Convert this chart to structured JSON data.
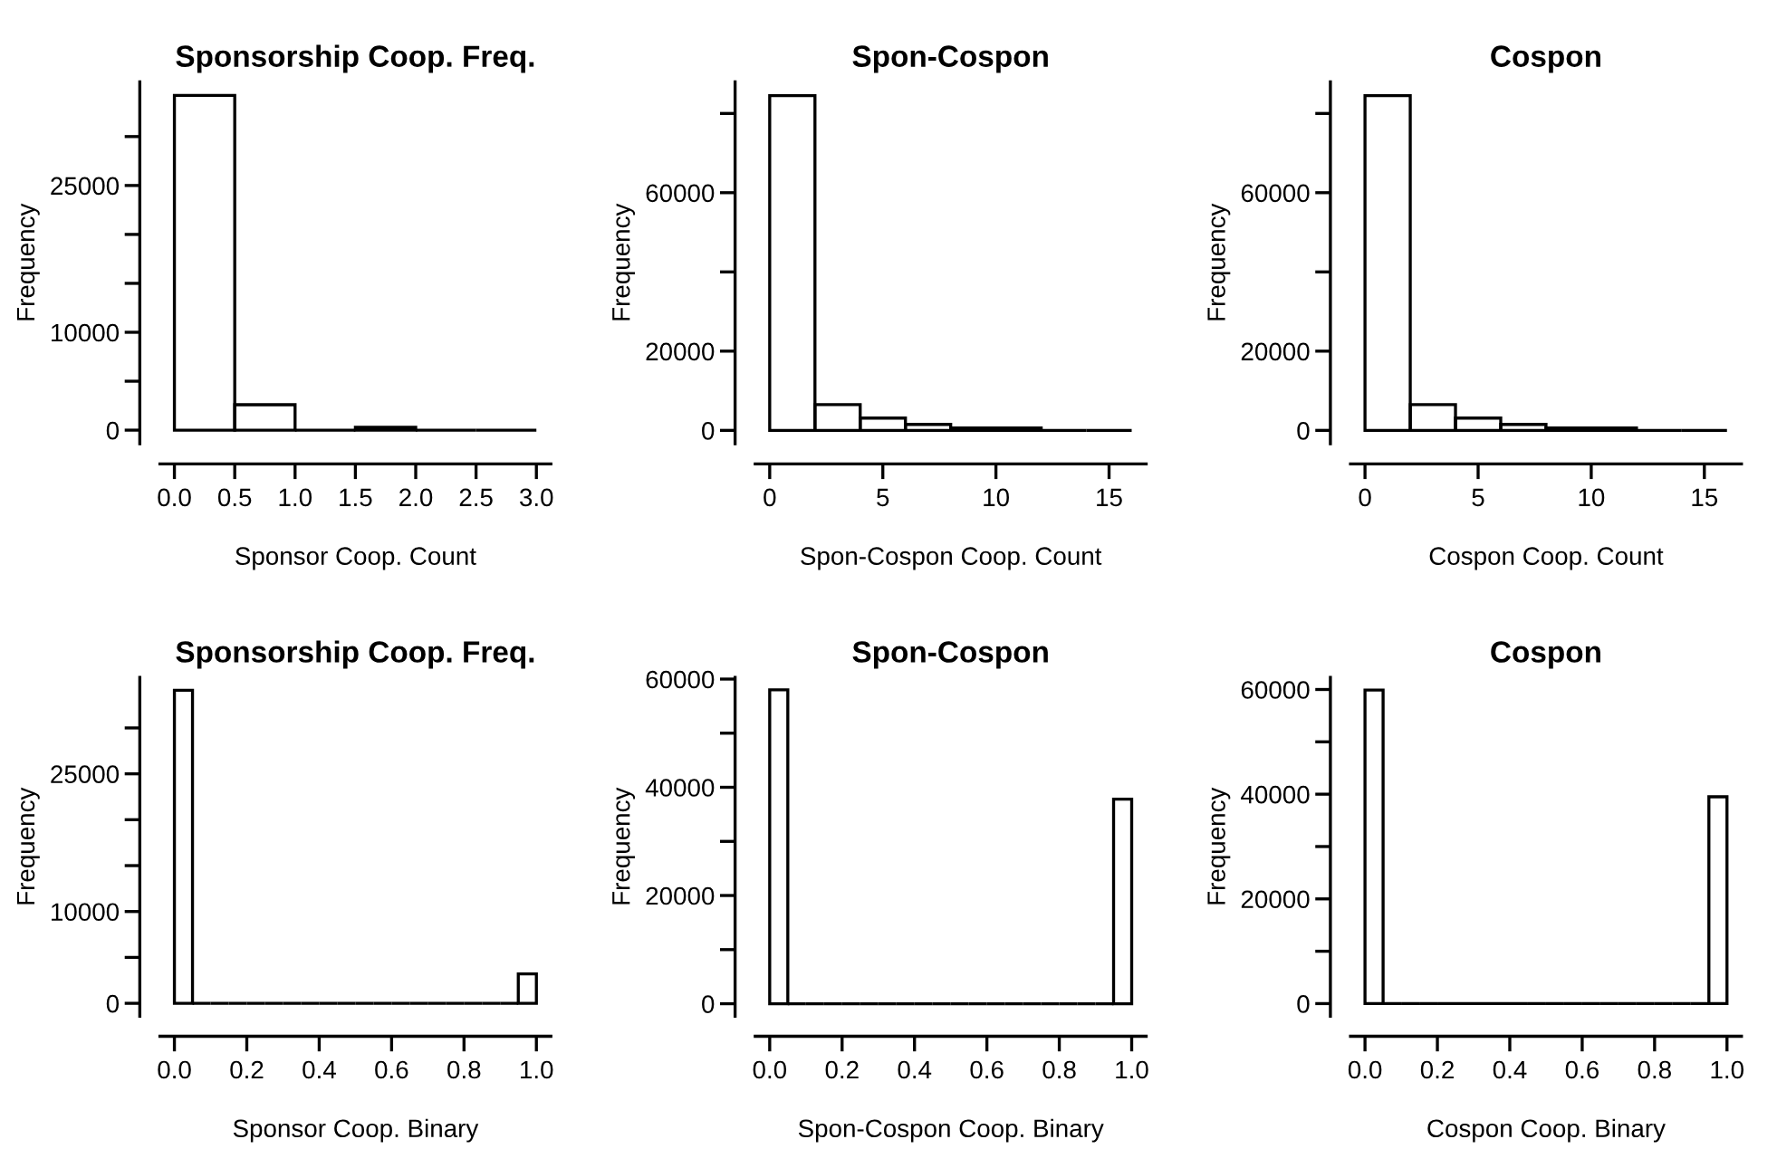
{
  "chart_data": [
    {
      "type": "histogram",
      "title": "Sponsorship Coop. Freq.",
      "xlabel": "Sponsor Coop. Count",
      "ylabel": "Frequency",
      "bins": [
        0,
        0.5,
        1.0,
        1.5,
        2.0,
        2.5,
        3.0
      ],
      "values": [
        34200,
        2600,
        0,
        300,
        0,
        0
      ],
      "xlim": [
        -0.12,
        3.12
      ],
      "xticks": [
        {
          "value": 0,
          "label": "0.0"
        },
        0.5,
        {
          "value": 1,
          "label": "1.0"
        },
        1.5,
        {
          "value": 2,
          "label": "2.0"
        },
        2.5,
        {
          "value": 3,
          "label": "3.0"
        }
      ],
      "ylim": [
        -1400,
        35600
      ],
      "yticks": [
        0,
        {
          "value": 5000,
          "label": null
        },
        10000,
        {
          "value": 15000,
          "label": null
        },
        {
          "value": 20000,
          "label": null
        },
        25000,
        {
          "value": 30000,
          "label": null
        }
      ]
    },
    {
      "type": "histogram",
      "title": "Spon-Cospon",
      "xlabel": "Spon-Cospon Coop. Count",
      "ylabel": "Frequency",
      "bins": [
        0,
        2,
        4,
        6,
        8,
        10,
        12,
        14,
        16
      ],
      "values": [
        84500,
        6500,
        3100,
        1500,
        600,
        600,
        0,
        0
      ],
      "xlim": [
        -0.64,
        16.64
      ],
      "xticks": [
        0,
        5,
        10,
        15
      ],
      "ylim": [
        -3400,
        88000
      ],
      "yticks": [
        0,
        20000,
        {
          "value": 40000,
          "label": null
        },
        60000,
        {
          "value": 80000,
          "label": null
        }
      ]
    },
    {
      "type": "histogram",
      "title": "Cospon",
      "xlabel": "Cospon Coop. Count",
      "ylabel": "Frequency",
      "bins": [
        0,
        2,
        4,
        6,
        8,
        10,
        12,
        14,
        16
      ],
      "values": [
        84500,
        6500,
        3100,
        1500,
        600,
        600,
        0,
        0
      ],
      "xlim": [
        -0.64,
        16.64
      ],
      "xticks": [
        0,
        5,
        10,
        15
      ],
      "ylim": [
        -3400,
        88000
      ],
      "yticks": [
        0,
        20000,
        {
          "value": 40000,
          "label": null
        },
        60000,
        {
          "value": 80000,
          "label": null
        }
      ]
    },
    {
      "type": "histogram",
      "title": "Sponsorship Coop. Freq.",
      "xlabel": "Sponsor Coop. Binary",
      "ylabel": "Frequency",
      "bins": [
        0,
        0.05,
        0.1,
        0.15,
        0.2,
        0.25,
        0.3,
        0.35,
        0.4,
        0.45,
        0.5,
        0.55,
        0.6,
        0.65,
        0.7,
        0.75,
        0.8,
        0.85,
        0.9,
        0.95,
        1.0
      ],
      "values": [
        34100,
        0,
        0,
        0,
        0,
        0,
        0,
        0,
        0,
        0,
        0,
        0,
        0,
        0,
        0,
        0,
        0,
        0,
        0,
        3200
      ],
      "xlim": [
        -0.04,
        1.04
      ],
      "xticks": [
        {
          "value": 0,
          "label": "0.0"
        },
        0.2,
        0.4,
        0.6,
        0.8,
        {
          "value": 1,
          "label": "1.0"
        }
      ],
      "ylim": [
        -1400,
        35500
      ],
      "yticks": [
        0,
        {
          "value": 5000,
          "label": null
        },
        10000,
        {
          "value": 15000,
          "label": null
        },
        {
          "value": 20000,
          "label": null
        },
        25000,
        {
          "value": 30000,
          "label": null
        }
      ]
    },
    {
      "type": "histogram",
      "title": "Spon-Cospon",
      "xlabel": "Spon-Cospon Coop. Binary",
      "ylabel": "Frequency",
      "bins": [
        0,
        0.05,
        0.1,
        0.15,
        0.2,
        0.25,
        0.3,
        0.35,
        0.4,
        0.45,
        0.5,
        0.55,
        0.6,
        0.65,
        0.7,
        0.75,
        0.8,
        0.85,
        0.9,
        0.95,
        1.0
      ],
      "values": [
        58000,
        0,
        0,
        0,
        0,
        0,
        0,
        0,
        0,
        0,
        0,
        0,
        0,
        0,
        0,
        0,
        0,
        0,
        0,
        37800
      ],
      "xlim": [
        -0.04,
        1.04
      ],
      "xticks": [
        {
          "value": 0,
          "label": "0.0"
        },
        0.2,
        0.4,
        0.6,
        0.8,
        {
          "value": 1,
          "label": "1.0"
        }
      ],
      "ylim": [
        -2300,
        60300
      ],
      "yticks": [
        0,
        {
          "value": 10000,
          "label": null
        },
        20000,
        {
          "value": 30000,
          "label": null
        },
        40000,
        {
          "value": 50000,
          "label": null
        },
        60000
      ]
    },
    {
      "type": "histogram",
      "title": "Cospon",
      "xlabel": "Cospon Coop. Binary",
      "ylabel": "Frequency",
      "bins": [
        0,
        0.05,
        0.1,
        0.15,
        0.2,
        0.25,
        0.3,
        0.35,
        0.4,
        0.45,
        0.5,
        0.55,
        0.6,
        0.65,
        0.7,
        0.75,
        0.8,
        0.85,
        0.9,
        0.95,
        1.0
      ],
      "values": [
        59900,
        0,
        0,
        0,
        0,
        0,
        0,
        0,
        0,
        0,
        0,
        0,
        0,
        0,
        0,
        0,
        0,
        0,
        0,
        39500
      ],
      "xlim": [
        -0.04,
        1.04
      ],
      "xticks": [
        {
          "value": 0,
          "label": "0.0"
        },
        0.2,
        0.4,
        0.6,
        0.8,
        {
          "value": 1,
          "label": "1.0"
        }
      ],
      "ylim": [
        -2400,
        62300
      ],
      "yticks": [
        0,
        {
          "value": 10000,
          "label": null
        },
        20000,
        {
          "value": 30000,
          "label": null
        },
        40000,
        {
          "value": 50000,
          "label": null
        },
        60000
      ]
    }
  ]
}
